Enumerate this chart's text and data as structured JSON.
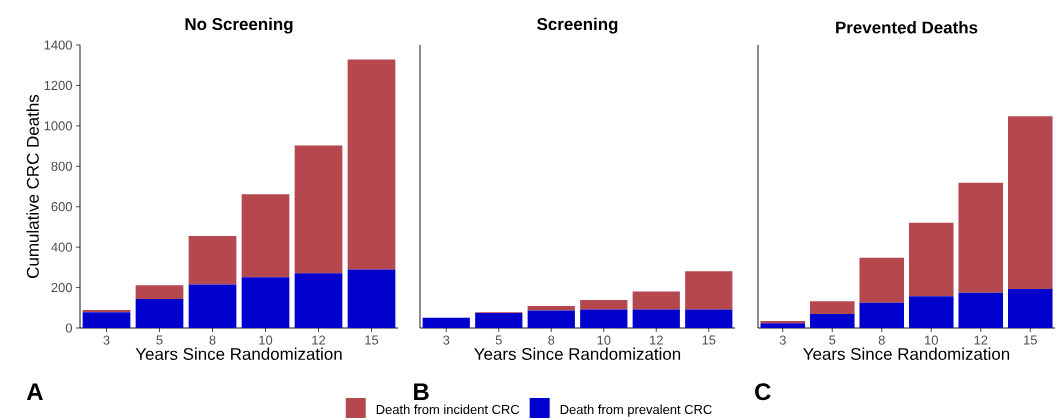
{
  "chart_data": [
    {
      "type": "bar",
      "stacked": true,
      "title": "No Screening",
      "xlabel": "Years Since Randomization",
      "ylabel": "Cumulative CRC Deaths",
      "annotations": [
        "A"
      ],
      "legend": "bottom",
      "categories": [
        "3",
        "5",
        "8",
        "10",
        "12",
        "15"
      ],
      "ylim": [
        0,
        1400
      ],
      "yticks": [
        0,
        200,
        400,
        600,
        800,
        1000,
        1200,
        1400
      ],
      "series": [
        {
          "name": "Death from prevalent CRC",
          "color": "#0000cc",
          "values": [
            78,
            144,
            215,
            251,
            271,
            290
          ]
        },
        {
          "name": "Death from incident CRC",
          "color": "#b5474e",
          "values": [
            11,
            67,
            240,
            411,
            632,
            1038
          ]
        }
      ]
    },
    {
      "type": "bar",
      "stacked": true,
      "title": "Screening",
      "xlabel": "Years Since Randomization",
      "annotations": [
        "B"
      ],
      "tick_labels": "x",
      "categories": [
        "3",
        "5",
        "8",
        "10",
        "12",
        "15"
      ],
      "ylim": [
        0,
        1400
      ],
      "series": [
        {
          "color": "#0000cc",
          "values": [
            51,
            74,
            87,
            91,
            92,
            92
          ]
        },
        {
          "color": "#b5474e",
          "values": [
            0,
            4,
            22,
            48,
            88,
            189
          ]
        }
      ]
    },
    {
      "type": "bar",
      "stacked": true,
      "title": "Prevented Deaths",
      "xlabel": "Years Since Randomization",
      "annotations": [
        "C"
      ],
      "tick_labels": "x",
      "categories": [
        "3",
        "5",
        "8",
        "10",
        "12",
        "15"
      ],
      "ylim": [
        0,
        1400
      ],
      "series": [
        {
          "color": "#0000cc",
          "values": [
            23,
            69,
            125,
            157,
            175,
            193
          ]
        },
        {
          "color": "#b5474e",
          "values": [
            12,
            63,
            222,
            364,
            543,
            855
          ]
        }
      ]
    }
  ]
}
